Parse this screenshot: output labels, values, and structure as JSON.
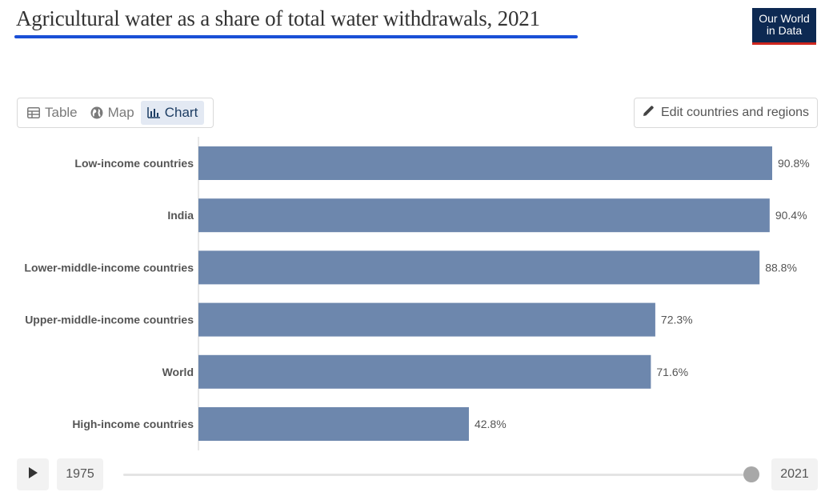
{
  "header": {
    "title": "Agricultural water as a share of total water withdrawals, 2021",
    "logo_line1": "Our World",
    "logo_line2": "in Data"
  },
  "tabs": [
    {
      "label": "Table",
      "icon": "table-icon",
      "active": false
    },
    {
      "label": "Map",
      "icon": "globe-icon",
      "active": false
    },
    {
      "label": "Chart",
      "icon": "bar-chart-icon",
      "active": true
    }
  ],
  "edit_button": {
    "label": "Edit countries and regions",
    "icon": "pencil-icon"
  },
  "timeline": {
    "start_year": "1975",
    "end_year": "2021",
    "position": 1.0
  },
  "colors": {
    "bar": "#6d87ad",
    "accent": "#1a4fd6",
    "brand": "#0d2952",
    "brand_red": "#ce261e"
  },
  "chart_data": {
    "type": "bar",
    "orientation": "horizontal",
    "categories": [
      "Low-income countries",
      "India",
      "Lower-middle-income countries",
      "Upper-middle-income countries",
      "World",
      "High-income countries"
    ],
    "values": [
      90.8,
      90.4,
      88.8,
      72.3,
      71.6,
      42.8
    ],
    "value_labels": [
      "90.8%",
      "90.4%",
      "88.8%",
      "72.3%",
      "71.6%",
      "42.8%"
    ],
    "unit": "%",
    "xlim": [
      0,
      90.8
    ],
    "grid": false,
    "legend": "none"
  }
}
